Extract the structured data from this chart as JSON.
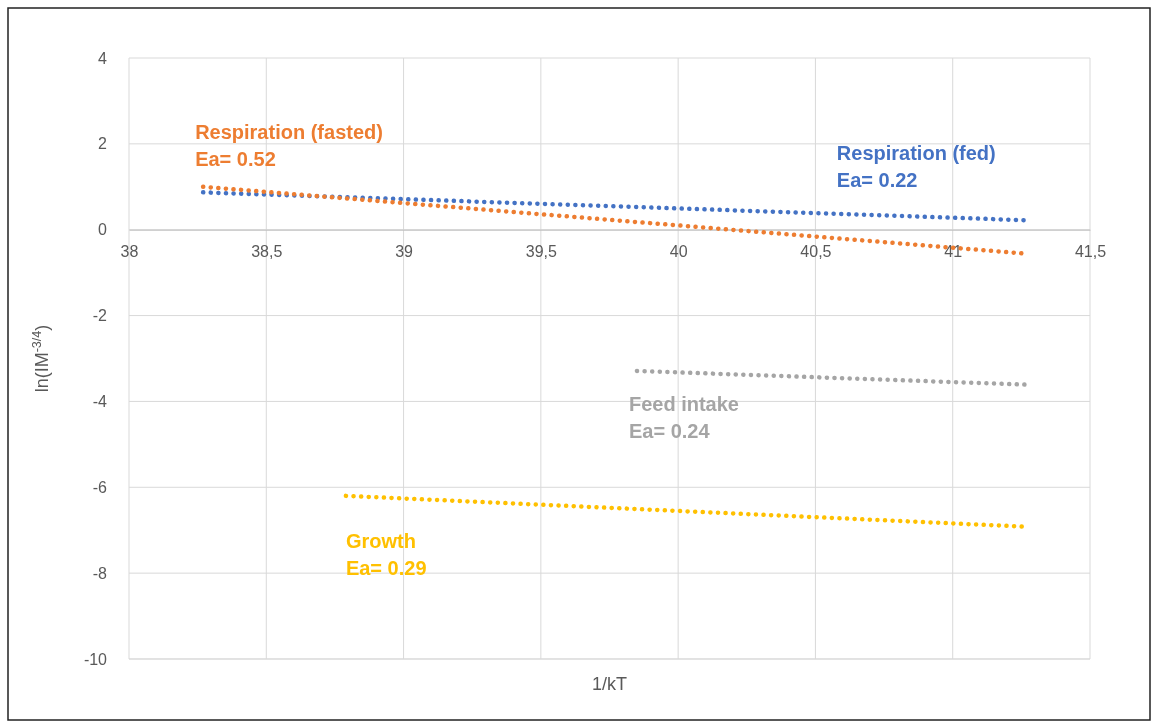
{
  "chart_data": {
    "type": "line",
    "xlabel": "1/kT",
    "ylabel": "ln(IM$^{-3/4}$)",
    "xlim": [
      38,
      41.5
    ],
    "ylim": [
      -10,
      4
    ],
    "xticks": [
      38,
      {
        "value": 38.5,
        "label": "38,5"
      },
      39,
      {
        "value": 39.5,
        "label": "39,5"
      },
      40,
      {
        "value": 40.5,
        "label": "40,5"
      },
      41,
      {
        "value": 41.5,
        "label": "41,5"
      }
    ],
    "yticks": [
      -10,
      -8,
      -6,
      -4,
      -2,
      0,
      2,
      4
    ],
    "grid": true,
    "marker": "none",
    "line_style": "dotted",
    "series": [
      {
        "name": "Respiration (fed)",
        "color": "#4472c4",
        "x": [
          38.27,
          41.27
        ],
        "values": [
          0.87,
          0.22
        ]
      },
      {
        "name": "Respiration (fasted)",
        "color": "#ed7d31",
        "x": [
          38.27,
          41.27
        ],
        "values": [
          1.0,
          -0.56
        ]
      },
      {
        "name": "Feed intake",
        "color": "#a5a5a5",
        "x": [
          39.85,
          41.27
        ],
        "values": [
          -3.29,
          -3.61
        ]
      },
      {
        "name": "Growth",
        "color": "#ffc000",
        "x": [
          38.79,
          41.27
        ],
        "values": [
          -6.2,
          -6.92
        ]
      }
    ],
    "annotations": [
      "Ea= 0.22",
      "Ea= 0.52",
      "Ea= 0.24",
      "Ea= 0.29"
    ]
  }
}
